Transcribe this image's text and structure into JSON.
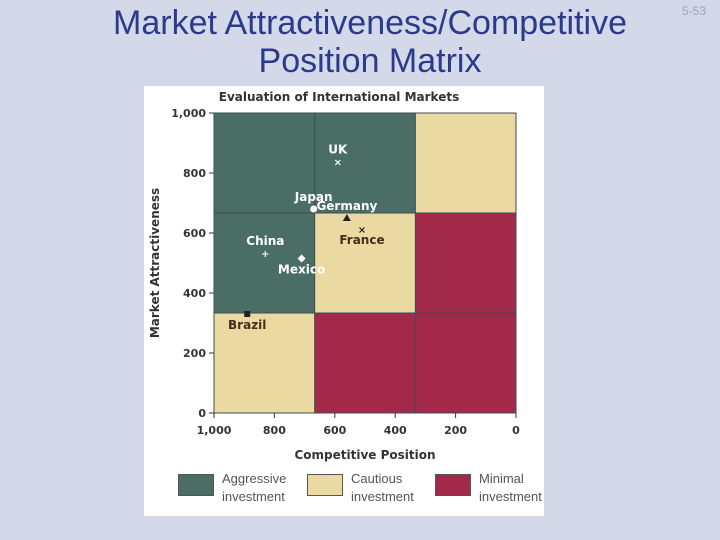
{
  "slide": {
    "title_line1": "Market Attractiveness/Competitive",
    "title_line2": "Position Matrix",
    "number": "5-53"
  },
  "colors": {
    "aggressive": "#4a6e65",
    "cautious": "#ead9a0",
    "minimal": "#a3294a",
    "background": "#d3d9e8",
    "title": "#2b3a8c"
  },
  "chart_data": {
    "type": "scatter",
    "title": "Evaluation of International Markets",
    "xlabel": "Competitive Position",
    "ylabel": "Market Attractiveness",
    "xlim": [
      1000,
      0
    ],
    "ylim": [
      0,
      1000
    ],
    "x_reversed": true,
    "x_ticks": [
      "1,000",
      "800",
      "600",
      "400",
      "200",
      "0"
    ],
    "y_ticks": [
      "0",
      "200",
      "400",
      "600",
      "800",
      "1,000"
    ],
    "grid": "3x3 zones",
    "zones": [
      [
        {
          "zone": "aggressive"
        },
        {
          "zone": "aggressive"
        },
        {
          "zone": "cautious"
        }
      ],
      [
        {
          "zone": "aggressive"
        },
        {
          "zone": "cautious"
        },
        {
          "zone": "minimal"
        }
      ],
      [
        {
          "zone": "cautious"
        },
        {
          "zone": "minimal"
        },
        {
          "zone": "minimal"
        }
      ]
    ],
    "points": [
      {
        "label": "UK",
        "x": 590,
        "y": 835,
        "marker": "x"
      },
      {
        "label": "Japan",
        "x": 670,
        "y": 680,
        "marker": "circle"
      },
      {
        "label": "Germany",
        "x": 560,
        "y": 650,
        "marker": "triangle"
      },
      {
        "label": "France",
        "x": 510,
        "y": 610,
        "marker": "x"
      },
      {
        "label": "China",
        "x": 830,
        "y": 530,
        "marker": "plus"
      },
      {
        "label": "Mexico",
        "x": 710,
        "y": 515,
        "marker": "diamond"
      },
      {
        "label": "Brazil",
        "x": 890,
        "y": 330,
        "marker": "square"
      }
    ],
    "legend_position": "bottom",
    "legend": [
      {
        "zone": "aggressive",
        "label": "Aggressive investment"
      },
      {
        "zone": "cautious",
        "label": "Cautious investment"
      },
      {
        "zone": "minimal",
        "label": "Minimal investment"
      }
    ]
  }
}
